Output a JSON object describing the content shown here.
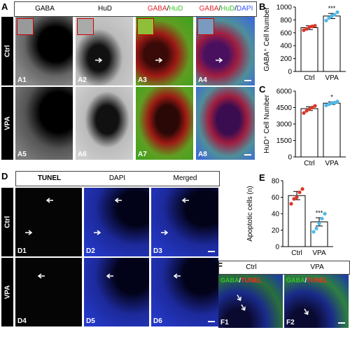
{
  "panels": {
    "A": {
      "letter": "A",
      "headers": [
        "GABA",
        "HuD",
        "GABA/HuD",
        "GABA/HuD/DAPI"
      ],
      "headers_colored": {
        "c3a": "GABA",
        "c3b": "/",
        "c3c": "HuD",
        "c4a": "GABA",
        "c4b": "/",
        "c4c": "HuD",
        "c4d": "/",
        "c4e": "DAPI"
      },
      "rows": [
        "Ctrl",
        "VPA"
      ],
      "tiles": [
        "A1",
        "A2",
        "A3",
        "A4",
        "A5",
        "A6",
        "A7",
        "A8"
      ]
    },
    "D": {
      "letter": "D",
      "headers": [
        "TUNEL",
        "DAPI",
        "Merged"
      ],
      "rows": [
        "Ctrl",
        "VPA"
      ],
      "tiles": [
        "D1",
        "D2",
        "D3",
        "D4",
        "D5",
        "D6"
      ]
    },
    "F": {
      "letter": "F",
      "headers": [
        "Ctrl",
        "VPA"
      ],
      "overlay": {
        "a": "GABA",
        "b": "/",
        "c": "TUNEL"
      },
      "tiles": [
        "F1",
        "F2"
      ]
    }
  },
  "colors": {
    "gaba": "#e0262b",
    "hud": "#37c427",
    "dapi": "#2f52ff",
    "tunel": "#ff2a1a",
    "bar_fill": "#ffffff",
    "point": "#d8392a",
    "point_alt": "#4fb9e8"
  },
  "chart_data": [
    {
      "panel": "B",
      "type": "bar",
      "categories": [
        "Ctrl",
        "VPA"
      ],
      "values": [
        680,
        860
      ],
      "errors": [
        30,
        40
      ],
      "points": [
        [
          640,
          660,
          690,
          700,
          710
        ],
        [
          790,
          830,
          860,
          880,
          920
        ]
      ],
      "point_colors": [
        "#d8392a",
        "#4fb9e8"
      ],
      "significance": [
        "",
        "***"
      ],
      "ylabel": "GABA⁺ Cell Number",
      "ylim": [
        0,
        1000
      ],
      "yticks": [
        0,
        200,
        400,
        600,
        800,
        1000
      ]
    },
    {
      "panel": "C",
      "type": "bar",
      "categories": [
        "Ctrl",
        "VPA"
      ],
      "values": [
        4400,
        4900
      ],
      "errors": [
        170,
        120
      ],
      "points": [
        [
          4000,
          4200,
          4350,
          4500,
          4650
        ],
        [
          4700,
          4800,
          4900,
          4950,
          5050
        ]
      ],
      "point_colors": [
        "#d8392a",
        "#4fb9e8"
      ],
      "significance": [
        "",
        "*"
      ],
      "ylabel": "HuD⁺ Cell Number",
      "ylim": [
        0,
        6000
      ],
      "yticks": [
        0,
        1500,
        3000,
        4500,
        6000
      ]
    },
    {
      "panel": "E",
      "type": "bar",
      "categories": [
        "Ctrl",
        "VPA"
      ],
      "values": [
        62,
        30
      ],
      "errors": [
        5,
        5
      ],
      "points": [
        [
          52,
          58,
          60,
          66,
          70
        ],
        [
          18,
          22,
          28,
          34,
          40
        ]
      ],
      "point_colors": [
        "#d8392a",
        "#4fb9e8"
      ],
      "significance": [
        "",
        "***"
      ],
      "ylabel": "Apoptotic cells (n)",
      "ylim": [
        0,
        80
      ],
      "yticks": [
        0,
        20,
        40,
        60,
        80
      ]
    }
  ]
}
